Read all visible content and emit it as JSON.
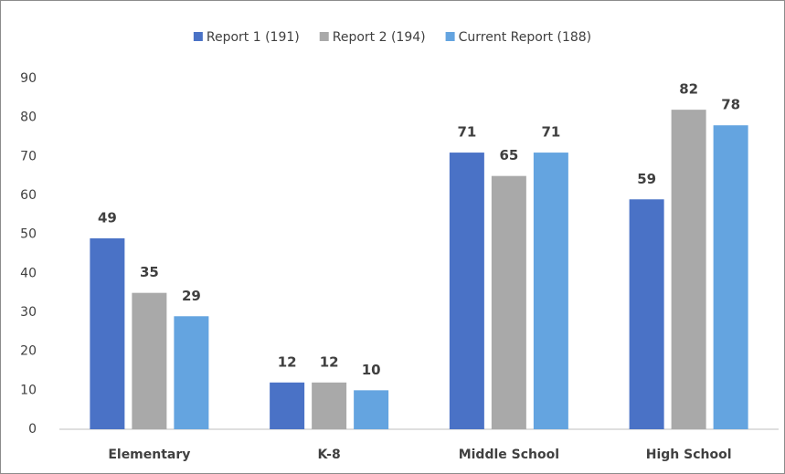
{
  "chart_data": {
    "type": "bar",
    "categories": [
      "Elementary",
      "K-8",
      "Middle School",
      "High School"
    ],
    "series": [
      {
        "name": "Report 1 (191)",
        "color": "#4a72c6",
        "values": [
          49,
          12,
          71,
          59
        ]
      },
      {
        "name": "Report 2 (194)",
        "color": "#a9a9a9",
        "values": [
          35,
          12,
          65,
          82
        ]
      },
      {
        "name": "Current Report (188)",
        "color": "#64a4e0",
        "values": [
          29,
          10,
          71,
          78
        ]
      }
    ],
    "ylim": [
      0,
      90
    ],
    "yticks": [
      0,
      10,
      20,
      30,
      40,
      50,
      60,
      70,
      80,
      90
    ],
    "grid": false,
    "data_labels": true,
    "legend": "top"
  }
}
